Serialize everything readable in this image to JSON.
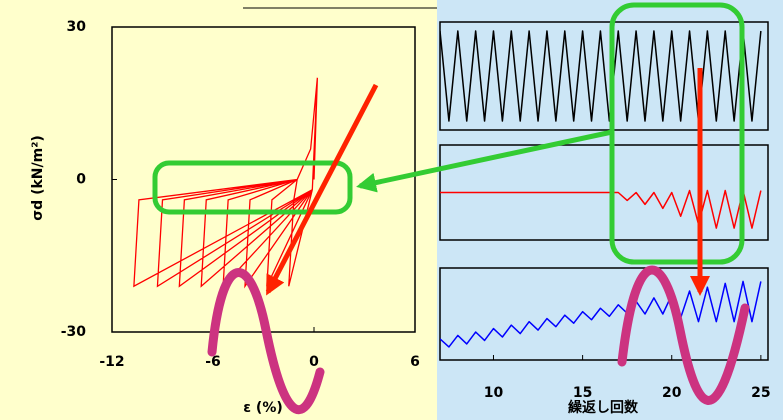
{
  "chart_data": [
    {
      "type": "line",
      "xlabel": "ε (%)",
      "ylabel": "σd (kN/m²)",
      "xlim": [
        -12,
        6
      ],
      "xticks": [
        -12,
        -6,
        0,
        6
      ],
      "ylim": [
        -30,
        30
      ],
      "yticks": [
        -30,
        0,
        30
      ],
      "series": [
        {
          "color": "#ff0000",
          "x": [
            0,
            0.2,
            -0.1,
            -1.5,
            -1.2,
            -1,
            -0.2,
            0.2,
            -0.1,
            -2.8,
            -2.5,
            -1,
            -0.2,
            0.2,
            -0.1,
            -4.1,
            -3.8,
            -1,
            -0.2,
            0.2,
            -0.1,
            -5.4,
            -5.1,
            -1,
            -0.2,
            0.2,
            -0.1,
            -6.7,
            -6.4,
            -1,
            -0.2,
            0.2,
            -0.1,
            -8,
            -7.7,
            -1,
            -0.2,
            0.2,
            -0.1,
            -9.3,
            -9,
            -1,
            -0.2,
            0.2,
            -0.1,
            -10.7,
            -10.4,
            -1,
            -0.2,
            0.2
          ],
          "values": [
            0,
            20,
            -2,
            -21,
            -4,
            0,
            6,
            20,
            -2,
            -21,
            -4,
            0,
            6,
            20,
            -2,
            -21,
            -4,
            0,
            6,
            20,
            -2,
            -21,
            -4,
            0,
            6,
            20,
            -2,
            -21,
            -4,
            0,
            6,
            20,
            -2,
            -21,
            -4,
            0,
            6,
            20,
            -2,
            -21,
            -4,
            0,
            6,
            20,
            -2,
            -21,
            -4,
            0,
            6,
            20
          ]
        }
      ]
    },
    {
      "type": "line",
      "subplots": true,
      "xlabel": "繰返し回数",
      "xlim": [
        7,
        25.4
      ],
      "xticks": [
        10,
        15,
        20,
        25
      ],
      "ylim": [
        -1.2,
        1.2
      ],
      "x": [
        7,
        7.5,
        8,
        8.5,
        9,
        9.5,
        10,
        10.5,
        11,
        11.5,
        12,
        12.5,
        13,
        13.5,
        14,
        14.5,
        15,
        15.5,
        16,
        16.5,
        17,
        17.5,
        18,
        18.5,
        19,
        19.5,
        20,
        20.5,
        21,
        21.5,
        22,
        22.5,
        23,
        23.5,
        24,
        24.5,
        25
      ],
      "series": [
        {
          "color": "#000000",
          "values": [
            1,
            -1,
            1,
            -1,
            1,
            -1,
            1,
            -1,
            1,
            -1,
            1,
            -1,
            1,
            -1,
            1,
            -1,
            1,
            -1,
            1,
            -1,
            1,
            -1,
            1,
            -1,
            1,
            -1,
            1,
            -1,
            1,
            -1,
            1,
            -1,
            1,
            -1,
            1,
            -1,
            1
          ]
        },
        {
          "color": "#ff0000",
          "values": [
            0,
            0,
            0,
            0,
            0,
            0,
            0,
            0,
            0,
            0,
            0,
            0,
            0,
            0,
            0,
            0,
            0,
            0,
            0,
            0,
            0,
            -0.2,
            0,
            -0.3,
            0,
            -0.4,
            0,
            -0.6,
            0.05,
            -0.8,
            0.05,
            -0.9,
            0.05,
            -0.9,
            0.05,
            -0.9,
            0.05
          ]
        },
        {
          "color": "#0000ff",
          "values": [
            -0.65,
            -0.86,
            -0.56,
            -0.78,
            -0.47,
            -0.69,
            -0.38,
            -0.6,
            -0.29,
            -0.51,
            -0.2,
            -0.42,
            -0.12,
            -0.33,
            -0.03,
            -0.24,
            0.06,
            -0.15,
            0.15,
            -0.06,
            0.24,
            0.02,
            0.33,
            0,
            0.42,
            0,
            0.5,
            -0.1,
            0.6,
            -0.2,
            0.7,
            -0.2,
            0.8,
            -0.2,
            0.85,
            -0.2,
            0.85
          ]
        }
      ]
    }
  ]
}
